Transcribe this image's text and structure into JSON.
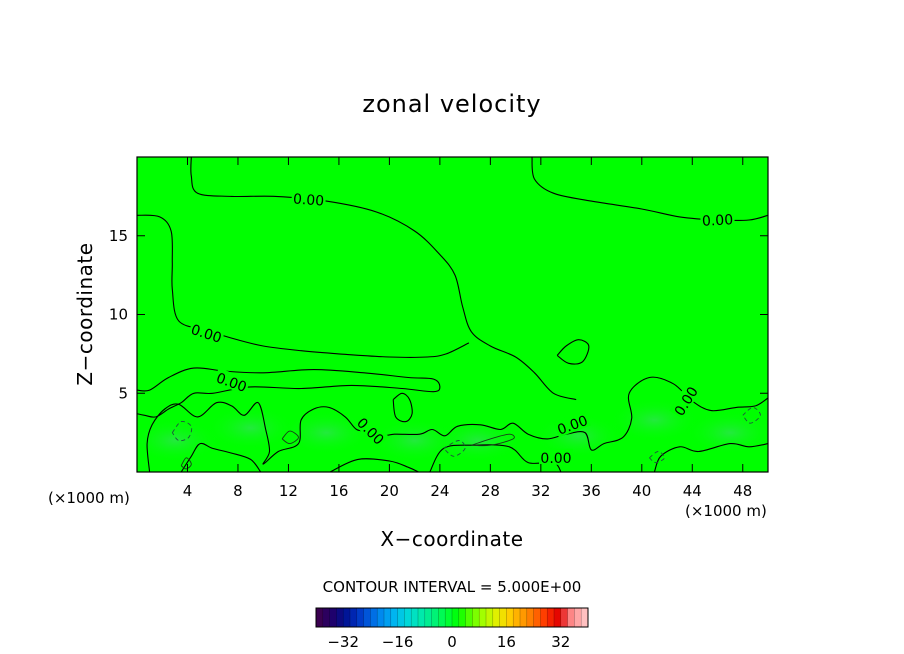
{
  "chart_data": {
    "type": "contour",
    "title": "zonal velocity",
    "xlabel": "X−coordinate",
    "ylabel": "Z−coordinate",
    "x_unit_label": "(×1000 m)",
    "x_unit_label_right": "(×1000 m)",
    "xlim": [
      0,
      50
    ],
    "ylim": [
      0,
      20
    ],
    "x_ticks": [
      {
        "value": 4,
        "label": "4"
      },
      {
        "value": 8,
        "label": "8"
      },
      {
        "value": 12,
        "label": "12"
      },
      {
        "value": 16,
        "label": "16"
      },
      {
        "value": 20,
        "label": "20"
      },
      {
        "value": 24,
        "label": "24"
      },
      {
        "value": 28,
        "label": "28"
      },
      {
        "value": 32,
        "label": "32"
      },
      {
        "value": 36,
        "label": "36"
      },
      {
        "value": 40,
        "label": "40"
      },
      {
        "value": 44,
        "label": "44"
      },
      {
        "value": 48,
        "label": "48"
      }
    ],
    "y_ticks": [
      {
        "value": 5,
        "label": "5"
      },
      {
        "value": 10,
        "label": "10"
      },
      {
        "value": 15,
        "label": "15"
      }
    ],
    "background_color": "#00ff00",
    "contour_interval_text": "CONTOUR INTERVAL = 5.000E+00",
    "contour_interval": 5.0,
    "contour_lines": [
      {
        "level": 0.0,
        "points": [
          [
            4.3,
            20
          ],
          [
            4.3,
            18.8
          ],
          [
            4.8,
            17.7
          ],
          [
            7.5,
            17.5
          ],
          [
            11,
            17.5
          ],
          [
            15,
            17.2
          ],
          [
            19,
            16.5
          ],
          [
            22,
            15.3
          ],
          [
            24,
            13.8
          ],
          [
            25.2,
            12.5
          ],
          [
            25.8,
            10.5
          ],
          [
            26.5,
            8.9
          ],
          [
            28,
            8.0
          ],
          [
            30,
            7.3
          ],
          [
            31.5,
            6.3
          ],
          [
            33,
            5.0
          ],
          [
            34.8,
            4.6
          ]
        ]
      },
      {
        "level": 0.0,
        "points": [
          [
            31.3,
            20
          ],
          [
            31.5,
            18.6
          ],
          [
            33,
            17.7
          ],
          [
            36,
            17.2
          ],
          [
            40,
            16.7
          ],
          [
            43,
            16.2
          ],
          [
            46,
            16.0
          ],
          [
            48.5,
            16.0
          ],
          [
            50,
            16.3
          ]
        ]
      },
      {
        "level": 0.0,
        "points": [
          [
            0,
            16.3
          ],
          [
            1.8,
            16.2
          ],
          [
            2.7,
            15.3
          ],
          [
            2.8,
            13.3
          ],
          [
            2.8,
            11.6
          ],
          [
            3.3,
            9.6
          ],
          [
            5.5,
            9.0
          ],
          [
            7.5,
            8.5
          ],
          [
            10,
            8.0
          ],
          [
            13,
            7.7
          ],
          [
            16,
            7.5
          ],
          [
            20,
            7.3
          ],
          [
            23,
            7.3
          ],
          [
            24.5,
            7.5
          ],
          [
            26.3,
            8.2
          ]
        ]
      },
      {
        "level": 0.0,
        "points": [
          [
            0,
            5.2
          ],
          [
            1,
            5.2
          ],
          [
            2.5,
            6.0
          ],
          [
            4.5,
            6.6
          ],
          [
            7,
            6.4
          ],
          [
            10,
            6.3
          ],
          [
            14,
            6.5
          ],
          [
            18,
            6.3
          ],
          [
            21.5,
            6.0
          ],
          [
            23.5,
            5.9
          ],
          [
            24,
            5.4
          ],
          [
            23.5,
            5.1
          ],
          [
            21,
            5.3
          ],
          [
            17,
            5.5
          ],
          [
            13,
            5.3
          ],
          [
            9,
            5.4
          ],
          [
            6,
            5.0
          ],
          [
            4.5,
            5.0
          ],
          [
            3.5,
            4.4
          ],
          [
            2.5,
            4.0
          ],
          [
            1.5,
            3.5
          ],
          [
            0.6,
            3.6
          ],
          [
            0,
            3.7
          ]
        ]
      },
      {
        "level": 0.0,
        "points": [
          [
            33.3,
            7.4
          ],
          [
            34,
            8.0
          ],
          [
            35,
            8.4
          ],
          [
            35.8,
            8.0
          ],
          [
            35.3,
            7.0
          ],
          [
            34.2,
            6.9
          ],
          [
            33.3,
            7.4
          ]
        ]
      },
      {
        "level": 0.0,
        "points": [
          [
            20.3,
            4.6
          ],
          [
            21,
            5.0
          ],
          [
            21.6,
            4.6
          ],
          [
            21.8,
            3.7
          ],
          [
            21.3,
            3.2
          ],
          [
            20.5,
            3.5
          ],
          [
            20.3,
            4.6
          ]
        ]
      },
      {
        "level": 0.0,
        "points": [
          [
            1,
            0
          ],
          [
            0.8,
            1.8
          ],
          [
            1.2,
            3.0
          ],
          [
            2.2,
            4.0
          ],
          [
            3.3,
            4.3
          ],
          [
            4.8,
            3.5
          ],
          [
            6.3,
            4.4
          ],
          [
            7.5,
            4.2
          ],
          [
            8.5,
            3.6
          ],
          [
            9.6,
            4.4
          ],
          [
            10.2,
            2.7
          ],
          [
            10.5,
            1.3
          ],
          [
            10,
            0.5
          ],
          [
            11.2,
            1.3
          ],
          [
            12.8,
            1.8
          ],
          [
            13,
            3.3
          ],
          [
            14,
            4.0
          ],
          [
            15.2,
            4.1
          ],
          [
            16.5,
            3.5
          ],
          [
            17.4,
            2.7
          ],
          [
            18.4,
            2.6
          ],
          [
            19.4,
            2.3
          ],
          [
            20.4,
            2.4
          ],
          [
            22.4,
            2.4
          ],
          [
            23.4,
            2.7
          ],
          [
            24.4,
            2.3
          ],
          [
            25.4,
            2.9
          ],
          [
            27.2,
            3.0
          ],
          [
            28.8,
            2.7
          ],
          [
            29.8,
            3.1
          ],
          [
            31,
            2.4
          ],
          [
            32.5,
            2.1
          ],
          [
            34,
            2.4
          ],
          [
            35.5,
            2.5
          ],
          [
            36,
            1.4
          ],
          [
            37,
            1.8
          ],
          [
            38.5,
            2.2
          ],
          [
            39.2,
            3.4
          ],
          [
            39,
            5.0
          ],
          [
            40.6,
            6.0
          ],
          [
            42.5,
            5.6
          ],
          [
            44,
            4.5
          ],
          [
            45.5,
            3.9
          ],
          [
            47.5,
            4.1
          ],
          [
            49,
            4.2
          ],
          [
            50,
            4.7
          ]
        ]
      },
      {
        "level": 0.0,
        "points": [
          [
            3.5,
            0
          ],
          [
            4.3,
            1.0
          ],
          [
            5,
            1.8
          ],
          [
            6,
            1.5
          ],
          [
            7.5,
            1.2
          ],
          [
            9,
            0.8
          ],
          [
            9.8,
            0
          ]
        ]
      },
      {
        "level": 0.0,
        "points": [
          [
            15.3,
            0
          ],
          [
            17.5,
            0.8
          ],
          [
            20,
            0.7
          ],
          [
            21.5,
            0.3
          ],
          [
            22.3,
            0
          ]
        ]
      },
      {
        "level": 0.0,
        "points": [
          [
            23.2,
            0
          ],
          [
            24.3,
            1.5
          ],
          [
            26.7,
            1.7
          ],
          [
            29.5,
            1.6
          ],
          [
            31,
            0.6
          ],
          [
            33,
            0.6
          ],
          [
            33.6,
            0
          ]
        ]
      },
      {
        "level": 0.0,
        "points": [
          [
            41,
            0
          ],
          [
            41.5,
            1.0
          ],
          [
            43,
            1.6
          ],
          [
            44.5,
            1.3
          ],
          [
            47,
            1.8
          ],
          [
            48.5,
            1.6
          ],
          [
            50,
            1.8
          ]
        ]
      },
      {
        "level": -5.0,
        "points": [
          [
            2.8,
            2.5
          ],
          [
            3.5,
            3.2
          ],
          [
            4.3,
            2.9
          ],
          [
            4.1,
            2.2
          ],
          [
            3.3,
            2.0
          ],
          [
            2.8,
            2.5
          ]
        ]
      },
      {
        "level": -5.0,
        "points": [
          [
            24.3,
            1.5
          ],
          [
            25.5,
            2.0
          ],
          [
            26,
            1.5
          ],
          [
            25.1,
            1.0
          ],
          [
            24.3,
            1.5
          ]
        ]
      },
      {
        "level": -5.0,
        "points": [
          [
            40.6,
            0.9
          ],
          [
            41.3,
            1.3
          ],
          [
            41.8,
            0.9
          ],
          [
            41.1,
            0.6
          ],
          [
            40.6,
            0.9
          ]
        ]
      },
      {
        "level": -5.0,
        "points": [
          [
            48,
            3.6
          ],
          [
            48.8,
            4.1
          ],
          [
            49.4,
            3.6
          ],
          [
            48.6,
            3.1
          ],
          [
            48,
            3.6
          ]
        ]
      },
      {
        "level": 5.0,
        "points": [
          [
            11.5,
            2.1
          ],
          [
            12.1,
            2.6
          ],
          [
            12.8,
            2.2
          ],
          [
            12.1,
            1.8
          ],
          [
            11.5,
            2.1
          ]
        ]
      },
      {
        "level": 5.0,
        "points": [
          [
            26.5,
            1.7
          ],
          [
            28,
            2.1
          ],
          [
            29.5,
            2.4
          ],
          [
            29.8,
            2.1
          ],
          [
            28,
            1.7
          ],
          [
            26.5,
            1.7
          ]
        ]
      },
      {
        "level": 5.0,
        "points": [
          [
            3.5,
            0.4
          ],
          [
            3.9,
            0.9
          ],
          [
            4.3,
            0.5
          ],
          [
            3.9,
            0.2
          ],
          [
            3.5,
            0.4
          ]
        ]
      }
    ],
    "contour_labels": [
      {
        "text": "0.00",
        "x": 13.6,
        "y": 17.3,
        "rotation": 4
      },
      {
        "text": "0.00",
        "x": 46,
        "y": 16.0,
        "rotation": -3
      },
      {
        "text": "0.00",
        "x": 5.5,
        "y": 8.8,
        "rotation": 18
      },
      {
        "text": "0.00",
        "x": 7.5,
        "y": 5.7,
        "rotation": 20
      },
      {
        "text": "0.00",
        "x": 18.5,
        "y": 2.6,
        "rotation": 45
      },
      {
        "text": "0.00",
        "x": 34.5,
        "y": 3.0,
        "rotation": -20
      },
      {
        "text": "0.00",
        "x": 33.2,
        "y": 0.9,
        "rotation": 0
      },
      {
        "text": "0.00",
        "x": 43.5,
        "y": 4.5,
        "rotation": -58
      }
    ],
    "colorbar": {
      "min": -40,
      "max": 40,
      "tick_values": [
        -32,
        -16,
        0,
        16,
        32
      ],
      "tick_labels": [
        "−32",
        "−16",
        "0",
        "16",
        "32"
      ],
      "colors": [
        "#3a0050",
        "#20006a",
        "#001090",
        "#0030c0",
        "#0060e0",
        "#0090f0",
        "#00b8f0",
        "#00d8d8",
        "#00e8b0",
        "#00f080",
        "#00ff40",
        "#00ff00",
        "#60ff00",
        "#a8ff00",
        "#e0f000",
        "#ffd000",
        "#ffa000",
        "#ff7000",
        "#ff3000",
        "#e00000",
        "#ff9090",
        "#ffc0c0"
      ]
    }
  }
}
